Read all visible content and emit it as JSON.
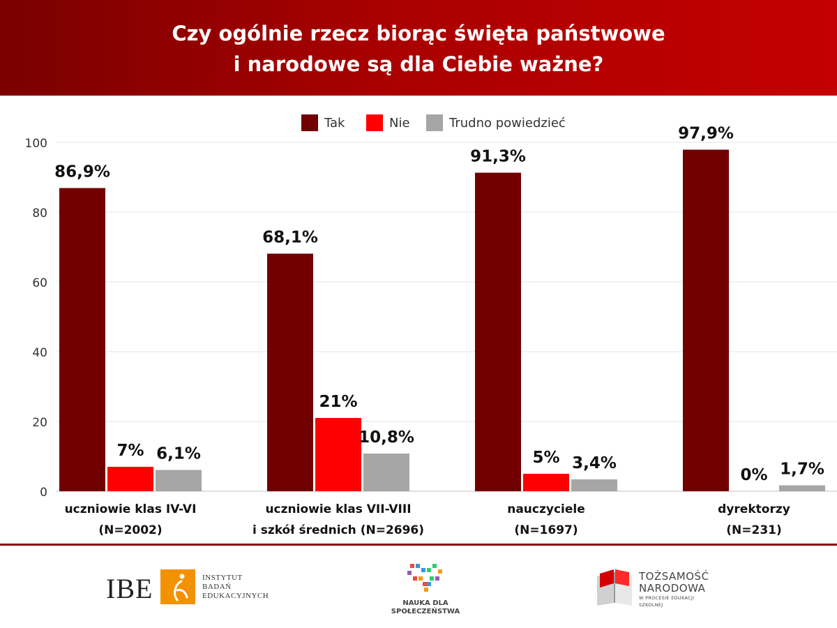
{
  "header": {
    "title_line1": "Czy ogólnie rzecz biorąc święta państwowe",
    "title_line2": "i narodowe są dla Ciebie ważne?"
  },
  "chart_data": {
    "type": "bar",
    "title": "Czy ogólnie rzecz biorąc święta państwowe i narodowe są dla Ciebie ważne?",
    "categories": [
      [
        "uczniowie klas IV-VI",
        "(N=2002)"
      ],
      [
        "uczniowie klas  VII-VIII",
        "i szkół średnich (N=2696)"
      ],
      [
        "nauczyciele",
        "(N=1697)"
      ],
      [
        "dyrektorzy",
        "(N=231)"
      ]
    ],
    "series": [
      {
        "name": "Tak",
        "color": "#720000",
        "values": [
          86.9,
          68.1,
          91.3,
          97.9
        ],
        "labels": [
          "86,9%",
          "68,1%",
          "91,3%",
          "97,9%"
        ]
      },
      {
        "name": "Nie",
        "color": "#ff0000",
        "values": [
          7,
          21,
          5,
          0
        ],
        "labels": [
          "7%",
          "21%",
          "5%",
          "0%"
        ]
      },
      {
        "name": "Trudno powiedzieć",
        "color": "#a6a6a6",
        "values": [
          6.1,
          10.8,
          3.4,
          1.7
        ],
        "labels": [
          "6,1%",
          "10,8%",
          "3,4%",
          "1,7%"
        ]
      }
    ],
    "yticks": [
      0,
      20,
      40,
      60,
      80,
      100
    ],
    "ylim": [
      0,
      100
    ],
    "grid": true,
    "legend": "top-center",
    "xlabel": "",
    "ylabel": ""
  },
  "footer": {
    "ibe": {
      "letters": "IBE",
      "line1": "INSTYTUT",
      "line2": "BADAŃ",
      "line3": "EDUKACYJNYCH"
    },
    "nauka": {
      "line1": "NAUKA DLA",
      "line2": "SPOŁECZEŃSTWA",
      "colors": [
        "#e74c3c",
        "#3498db",
        "#2ecc71",
        "#f39c12",
        "#9b59b6"
      ]
    },
    "tozsamosc": {
      "line1": "TOŻSAMOŚĆ",
      "line2": "NARODOWA",
      "line3": "W PROCESIE EDUKACJI SZKOLNEJ"
    }
  }
}
